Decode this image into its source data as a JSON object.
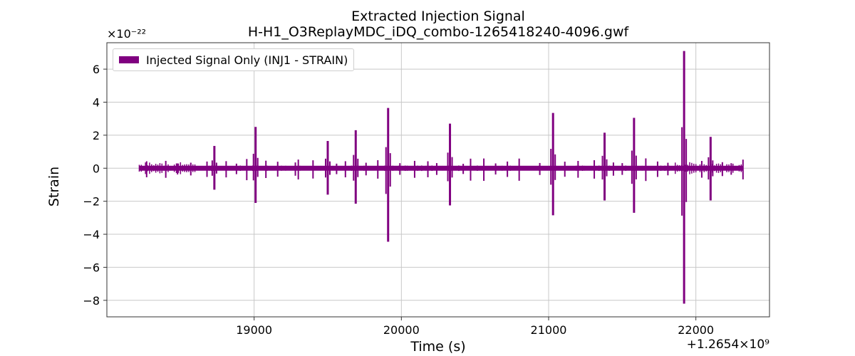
{
  "chart_data": {
    "type": "line",
    "title": [
      "Extracted Injection Signal",
      "H-H1_O3ReplayMDC_iDQ_combo-1265418240-4096.gwf"
    ],
    "xlabel": "Time (s)",
    "ylabel": "Strain",
    "x_offset_label": "+1.2654×10⁹",
    "y_scale_label": "×10⁻²²",
    "xlim": [
      18000,
      22500
    ],
    "ylim": [
      -9,
      7.6
    ],
    "x_ticks": [
      19000,
      20000,
      21000,
      22000
    ],
    "y_ticks": [
      -8,
      -6,
      -4,
      -2,
      0,
      2,
      4,
      6
    ],
    "x_tick_labels": [
      "19000",
      "20000",
      "21000",
      "22000"
    ],
    "y_tick_labels": [
      "−8",
      "−6",
      "−4",
      "−2",
      "0",
      "2",
      "4",
      "6"
    ],
    "grid": true,
    "legend_position": "top-left",
    "series": [
      {
        "name": "Injected Signal Only (INJ1 - STRAIN)",
        "color": "#800080",
        "x_range": [
          18220,
          22320
        ],
        "baseline_band": 0.15,
        "spikes": [
          {
            "x": 18730,
            "ymax": 1.35,
            "ymin": -1.3
          },
          {
            "x": 19010,
            "ymax": 2.5,
            "ymin": -2.1
          },
          {
            "x": 19500,
            "ymax": 1.65,
            "ymin": -1.6
          },
          {
            "x": 19690,
            "ymax": 2.3,
            "ymin": -2.15
          },
          {
            "x": 19910,
            "ymax": 3.65,
            "ymin": -4.45
          },
          {
            "x": 20330,
            "ymax": 2.7,
            "ymin": -2.25
          },
          {
            "x": 21030,
            "ymax": 3.35,
            "ymin": -2.85
          },
          {
            "x": 21380,
            "ymax": 2.15,
            "ymin": -1.95
          },
          {
            "x": 21580,
            "ymax": 3.05,
            "ymin": -2.7
          },
          {
            "x": 21920,
            "ymax": 7.1,
            "ymin": -8.2
          },
          {
            "x": 22100,
            "ymax": 1.9,
            "ymin": -1.95
          }
        ],
        "small_bursts": [
          18270,
          18400,
          18480,
          18570,
          18680,
          18810,
          18880,
          18950,
          19080,
          19160,
          19280,
          19300,
          19400,
          19560,
          19620,
          19760,
          19840,
          19990,
          20090,
          20180,
          20240,
          20420,
          20470,
          20560,
          20640,
          20720,
          20800,
          20940,
          21110,
          21200,
          21310,
          21440,
          21500,
          21660,
          21740,
          21810,
          22040,
          22180,
          22240,
          22320
        ]
      }
    ]
  }
}
